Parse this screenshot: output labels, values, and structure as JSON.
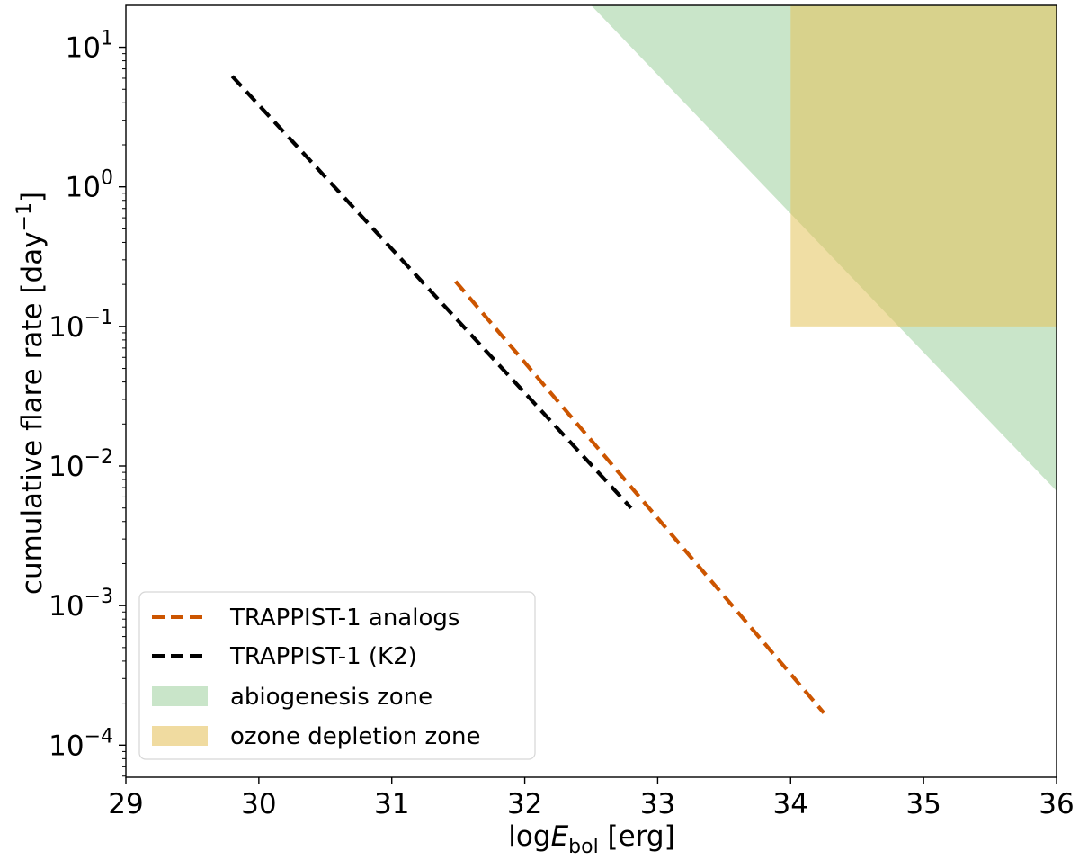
{
  "chart_data": {
    "type": "line",
    "xlabel": {
      "pre": "log",
      "main": "E",
      "sub": "bol",
      "post": " [erg]"
    },
    "ylabel": {
      "main": "cumulative flare rate [day",
      "sup": "−1",
      "post": "]"
    },
    "xlim": [
      29,
      36
    ],
    "ylim_log10": [
      -4.23,
      1.3
    ],
    "yscale": "log",
    "xticks": [
      "29",
      "30",
      "31",
      "32",
      "33",
      "34",
      "35",
      "36"
    ],
    "yticks": [
      {
        "base": "10",
        "exp": "−4",
        "value": -4
      },
      {
        "base": "10",
        "exp": "−3",
        "value": -3
      },
      {
        "base": "10",
        "exp": "−2",
        "value": -2
      },
      {
        "base": "10",
        "exp": "−1",
        "value": -1
      },
      {
        "base": "10",
        "exp": "0",
        "value": 0
      },
      {
        "base": "10",
        "exp": "1",
        "value": 1
      }
    ],
    "series": [
      {
        "name": "TRAPPIST-1 analogs",
        "color": "#cc5500",
        "style": "dashed",
        "x": [
          31.48,
          34.25
        ],
        "y": [
          0.21,
          0.00017
        ]
      },
      {
        "name": "TRAPPIST-1 (K2)",
        "color": "#000000",
        "style": "dashed",
        "x": [
          29.8,
          32.8
        ],
        "y": [
          6.2,
          0.005
        ]
      }
    ],
    "regions": [
      {
        "name": "abiogenesis zone",
        "color": "#c9e5c9",
        "x": [
          32.5,
          36
        ],
        "y_log10_at_x": [
          1.3,
          -2.18
        ]
      },
      {
        "name": "ozone depletion zone",
        "color": "#e3c25a",
        "x": [
          34,
          36
        ],
        "y": [
          0.1,
          20
        ]
      }
    ],
    "legend_position": "lower-left",
    "grid": false
  }
}
